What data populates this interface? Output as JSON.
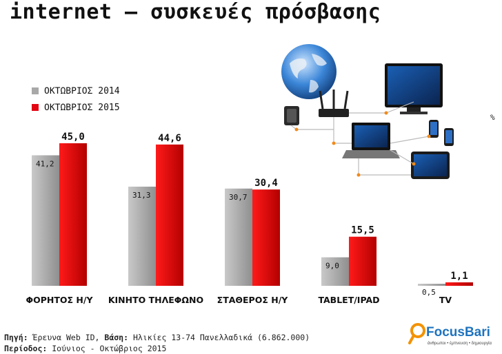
{
  "title": "internet – συσκευές πρόσβασης",
  "unit_label": "%",
  "colors": {
    "series_2014": "#a8a8a8",
    "series_2015": "#e30613",
    "logo_blue": "#1e73be",
    "logo_orange": "#f39200"
  },
  "chart_data": {
    "type": "bar",
    "title": "",
    "categories": [
      "ΦΟΡΗΤΟΣ Η/Υ",
      "ΚΙΝΗΤΟ ΤΗΛΕΦΩΝΟ",
      "ΣΤΑΘΕΡΟΣ Η/Υ",
      "TABLET/IPAD",
      "TV"
    ],
    "series": [
      {
        "name": "ΟΚΤΩΒΡΙΟΣ 2014",
        "values": [
          41.2,
          31.3,
          30.7,
          9.0,
          0.5
        ],
        "labels": [
          "41,2",
          "31,3",
          "30,7",
          "9,0",
          "0,5"
        ]
      },
      {
        "name": "ΟΚΤΩΒΡΙΟΣ 2015",
        "values": [
          45.0,
          44.6,
          30.4,
          15.5,
          1.1
        ],
        "labels": [
          "45,0",
          "44,6",
          "30,4",
          "15,5",
          "1,1"
        ]
      }
    ],
    "xlabel": "",
    "ylabel": "",
    "ylim": [
      0,
      45
    ],
    "grid": false,
    "legend": "top-left"
  },
  "source": {
    "line1_key": "Πηγή:",
    "line1_value": " Έρευνα Web ID, ",
    "line1_key2": "Βάση:",
    "line1_value2": " Ηλικίες 13-74 Πανελλαδικά (6.862.000)",
    "line2_key": "Περίοδος:",
    "line2_value": " Ιούνιος - Οκτώβριος 2015"
  },
  "logo": {
    "name": "FocusBari",
    "tagline": "άνθρωποι • έμπνευση • δημιουργία"
  }
}
